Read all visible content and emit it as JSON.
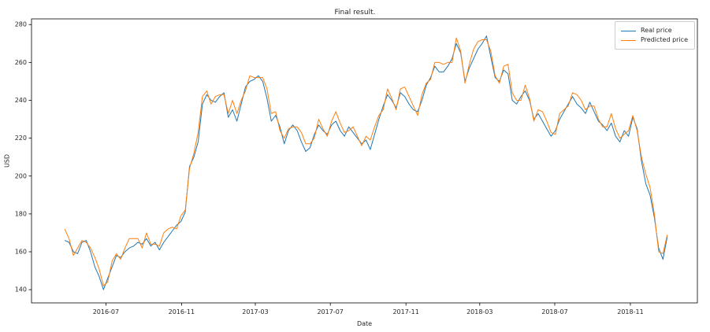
{
  "chart_data": {
    "type": "line",
    "title": "Final result.",
    "xlabel": "Date",
    "ylabel": "USD",
    "ylim": [
      133,
      283
    ],
    "xlim": [
      "2016-03-02",
      "2019-02-18"
    ],
    "yticks": [
      140,
      160,
      180,
      200,
      220,
      240,
      260,
      280
    ],
    "xticks": [
      {
        "date": "2016-07-01",
        "label": "2016-07"
      },
      {
        "date": "2016-11-01",
        "label": "2016-11"
      },
      {
        "date": "2017-03-01",
        "label": "2017-03"
      },
      {
        "date": "2017-07-01",
        "label": "2017-07"
      },
      {
        "date": "2017-11-01",
        "label": "2017-11"
      },
      {
        "date": "2018-03-01",
        "label": "2018-03"
      },
      {
        "date": "2018-07-01",
        "label": "2018-07"
      },
      {
        "date": "2018-11-01",
        "label": "2018-11"
      }
    ],
    "x_start": "2016-04-25",
    "x_step_days": 7,
    "legend_position": "upper right",
    "grid": false,
    "series": [
      {
        "name": "Real price",
        "color": "#1f77b4",
        "values": [
          166,
          165,
          160,
          159,
          165,
          166,
          160,
          152,
          147,
          140,
          146,
          152,
          158,
          157,
          160,
          162,
          163,
          165,
          164,
          167,
          163,
          165,
          161,
          165,
          168,
          171,
          174,
          176,
          181,
          205,
          210,
          218,
          238,
          243,
          240,
          239,
          242,
          244,
          231,
          235,
          229,
          238,
          247,
          250,
          251,
          253,
          250,
          241,
          229,
          232,
          226,
          217,
          224,
          227,
          224,
          218,
          213,
          215,
          222,
          227,
          224,
          222,
          227,
          229,
          224,
          221,
          226,
          223,
          220,
          217,
          219,
          214,
          222,
          230,
          237,
          243,
          240,
          236,
          244,
          242,
          238,
          235,
          234,
          240,
          248,
          252,
          258,
          255,
          255,
          258,
          262,
          270,
          265,
          250,
          257,
          262,
          267,
          270,
          274,
          263,
          252,
          250,
          256,
          254,
          240,
          238,
          242,
          245,
          240,
          230,
          233,
          229,
          225,
          221,
          224,
          230,
          234,
          238,
          242,
          238,
          236,
          233,
          239,
          234,
          229,
          227,
          224,
          228,
          221,
          218,
          224,
          221,
          231,
          225,
          208,
          196,
          190,
          178,
          162,
          156,
          168
        ]
      },
      {
        "name": "Predicted price",
        "color": "#ff7f0e",
        "values": [
          172,
          167,
          158,
          162,
          166,
          165,
          162,
          157,
          151,
          142,
          144,
          155,
          159,
          156,
          162,
          167,
          167,
          167,
          162,
          170,
          164,
          164,
          163,
          170,
          172,
          173,
          172,
          179,
          182,
          204,
          212,
          223,
          242,
          245,
          238,
          242,
          243,
          243,
          233,
          240,
          233,
          240,
          245,
          253,
          252,
          252,
          252,
          246,
          233,
          234,
          224,
          220,
          225,
          226,
          226,
          223,
          217,
          217,
          220,
          230,
          225,
          221,
          229,
          234,
          228,
          223,
          224,
          226,
          221,
          216,
          221,
          219,
          226,
          232,
          235,
          246,
          241,
          235,
          246,
          247,
          242,
          237,
          232,
          243,
          249,
          251,
          260,
          260,
          259,
          260,
          260,
          273,
          266,
          249,
          259,
          267,
          271,
          272,
          272,
          266,
          253,
          249,
          258,
          259,
          244,
          240,
          240,
          248,
          241,
          229,
          235,
          234,
          229,
          223,
          222,
          233,
          235,
          237,
          244,
          243,
          240,
          235,
          237,
          237,
          230,
          226,
          226,
          233,
          225,
          220,
          222,
          224,
          232,
          224,
          210,
          201,
          194,
          180,
          160,
          159,
          169
        ]
      }
    ]
  }
}
